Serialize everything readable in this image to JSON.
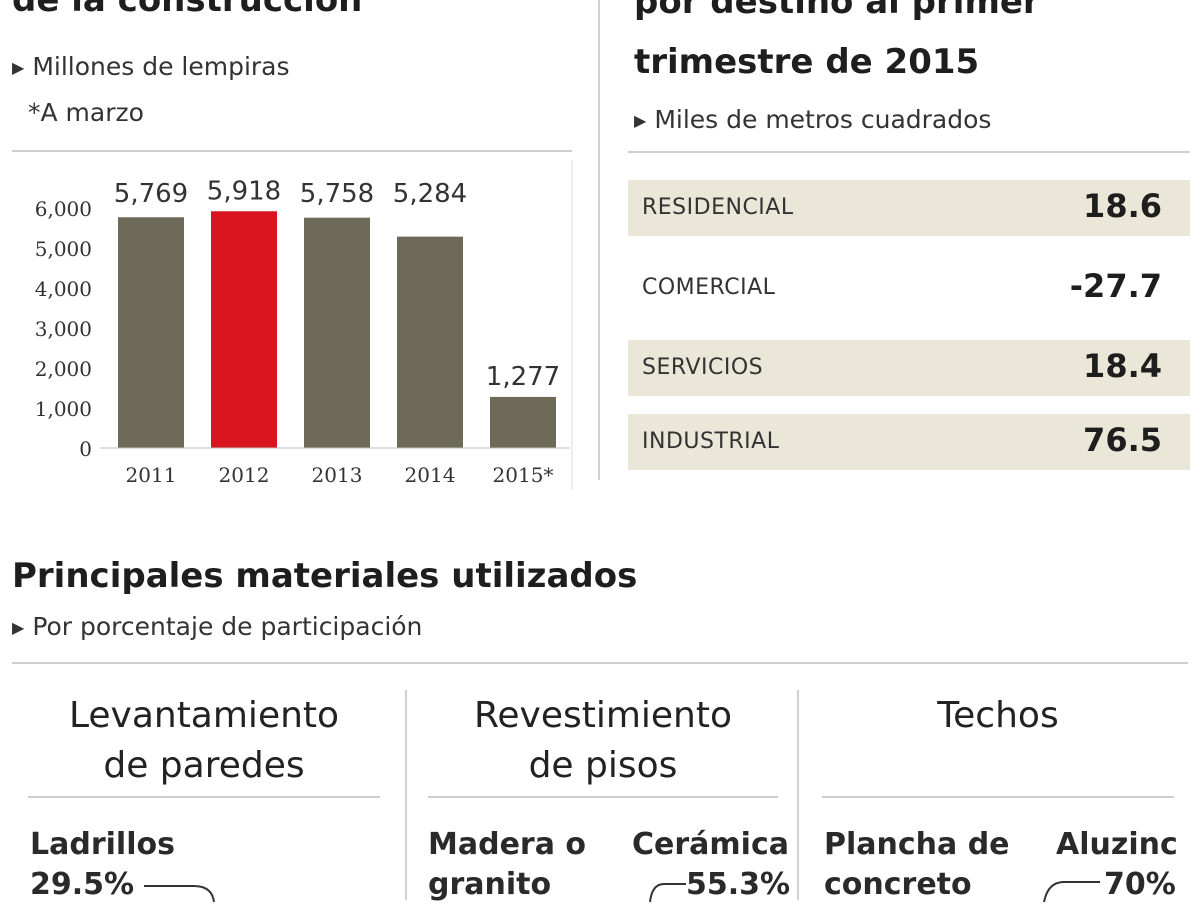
{
  "left_chart": {
    "title_line": "de la construcción",
    "unit": "Millones de lempiras",
    "note": "*A marzo",
    "y_ticks": [
      "6,000",
      "5,000",
      "4,000",
      "3,000",
      "2,000",
      "1,000",
      "0"
    ]
  },
  "right_table": {
    "title_line1": "por destino al primer",
    "title_line2": "trimestre de 2015",
    "unit": "Miles de metros cuadrados",
    "rows": [
      {
        "label": "RESIDENCIAL",
        "value": "18.6"
      },
      {
        "label": "COMERCIAL",
        "value": "-27.7"
      },
      {
        "label": "SERVICIOS",
        "value": "18.4"
      },
      {
        "label": "INDUSTRIAL",
        "value": "76.5"
      }
    ]
  },
  "materials": {
    "title": "Principales materiales utilizados",
    "unit": "Por porcentaje de participación",
    "panels": [
      {
        "title_line1": "Levantamiento",
        "title_line2": "de paredes",
        "items": [
          {
            "name": "Ladrillos",
            "value": "29.5%"
          }
        ]
      },
      {
        "title_line1": "Revestimiento",
        "title_line2": "de pisos",
        "items": [
          {
            "name_line1": "Madera o",
            "name_line2": "granito"
          },
          {
            "name": "Cerámica",
            "value": "55.3%"
          }
        ]
      },
      {
        "title_line1": "Techos",
        "title_line2": "",
        "items": [
          {
            "name_line1": "Plancha de",
            "name_line2": "concreto"
          },
          {
            "name": "Aluzinc",
            "value": "70%"
          }
        ]
      }
    ]
  },
  "colors": {
    "bar_default": "#6e6a58",
    "bar_highlight": "#d8141c",
    "row_shaded": "#eae6d8"
  },
  "chart_data": {
    "type": "bar",
    "title": "de la construcción",
    "ylabel": "Millones de lempiras",
    "categories": [
      "2011",
      "2012",
      "2013",
      "2014",
      "2015*"
    ],
    "values": [
      5769,
      5918,
      5758,
      5284,
      1277
    ],
    "value_labels": [
      "5,769",
      "5,918",
      "5,758",
      "5,284",
      "1,277"
    ],
    "highlight": "2012",
    "ylim": [
      0,
      6000
    ],
    "grid": false,
    "legend": "none"
  }
}
